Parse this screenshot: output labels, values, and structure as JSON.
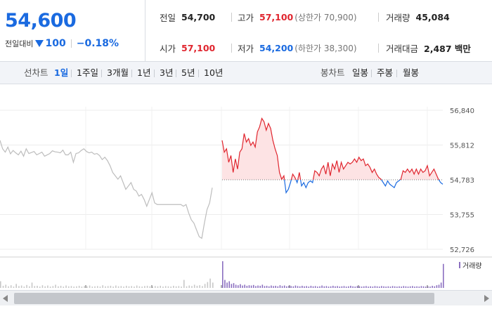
{
  "header": {
    "current_price": "54,600",
    "change_label": "전일대비",
    "change_direction_icon": "down-triangle-icon",
    "change_amount": "100",
    "change_rate": "−0.18%",
    "stats": {
      "prev_close": {
        "label": "전일",
        "value": "54,700"
      },
      "high": {
        "label": "고가",
        "value": "57,100",
        "sub": "(상한가 70,900)"
      },
      "volume": {
        "label": "거래량",
        "value": "45,084"
      },
      "open": {
        "label": "시가",
        "value": "57,100"
      },
      "low": {
        "label": "저가",
        "value": "54,200",
        "sub": "(하한가 38,300)"
      },
      "amount": {
        "label": "거래대금",
        "value": "2,487 백만"
      }
    }
  },
  "period_bar": {
    "line_chart_label": "선차트",
    "periods": [
      "1일",
      "1주일",
      "3개월",
      "1년",
      "3년",
      "5년",
      "10년"
    ],
    "active_period": "1일",
    "candle_chart_label": "봉차트",
    "candle_periods": [
      "일봉",
      "주봉",
      "월봉"
    ]
  },
  "colors": {
    "up": "#e0262f",
    "down": "#1a6ae0",
    "previous_day": "#bdbdbd",
    "up_fill": "#fde3e4",
    "volume_today": "#8b6fc0",
    "volume_previous": "#c8c8c8"
  },
  "chart_data": {
    "type": "line",
    "y_ticks": [
      "56,840",
      "55,812",
      "54,783",
      "53,755",
      "52,726"
    ],
    "ylim": [
      52726,
      56840
    ],
    "base_value": 54783,
    "volume_legend": "거래량",
    "previous_day_series": [
      55950,
      55700,
      55600,
      55750,
      55550,
      55650,
      55580,
      55520,
      55630,
      55480,
      55700,
      55560,
      55590,
      55620,
      55520,
      55560,
      55600,
      55480,
      55520,
      55560,
      55640,
      55610,
      55600,
      55580,
      55660,
      55520,
      55520,
      55600,
      55300,
      55560,
      55580,
      55650,
      55700,
      55620,
      55580,
      55600,
      55540,
      55560,
      55500,
      55380,
      55450,
      55350,
      55200,
      55000,
      54900,
      54800,
      54900,
      54700,
      54500,
      54600,
      54700,
      54500,
      54450,
      54300,
      54350,
      54200,
      54000,
      54200,
      54400,
      54100,
      54050,
      54050,
      54050,
      54050,
      54050,
      54050,
      54050,
      54050,
      54050,
      54050,
      54000,
      54050,
      53800,
      53600,
      53500,
      53300,
      53100,
      53050,
      53500,
      53900,
      54100,
      54550
    ],
    "today_series": [
      55950,
      55600,
      55700,
      55300,
      55500,
      55000,
      55400,
      55100,
      55600,
      55700,
      56150,
      55900,
      56000,
      55800,
      55900,
      55750,
      56200,
      56350,
      56600,
      56500,
      56250,
      56450,
      56300,
      55950,
      55700,
      55500,
      55000,
      54800,
      54900,
      54400,
      54500,
      54700,
      54950,
      54850,
      54700,
      55000,
      54600,
      54700,
      54550,
      54700,
      54750,
      54700,
      55050,
      55000,
      54900,
      55100,
      55200,
      54950,
      55300,
      54900,
      55250,
      55100,
      55350,
      55000,
      55300,
      55100,
      55200,
      55300,
      55250,
      55300,
      55400,
      55300,
      55450,
      55350,
      55400,
      55200,
      55250,
      55150,
      55000,
      55100,
      54950,
      54850,
      54800,
      54700,
      54600,
      54750,
      54650,
      54600,
      54550,
      54700,
      54750,
      54800,
      55050,
      55000,
      55100,
      55000,
      55100,
      54950,
      55100,
      54950,
      55100,
      55000,
      55050,
      55200,
      54900,
      55000,
      55100,
      54950,
      54800,
      54700,
      54650
    ],
    "previous_day_volume": [
      0.25,
      0.08,
      0.12,
      0.06,
      0.1,
      0.05,
      0.15,
      0.07,
      0.09,
      0.05,
      0.11,
      0.06,
      0.2,
      0.07,
      0.08,
      0.05,
      0.1,
      0.06,
      0.09,
      0.05,
      0.07,
      0.12,
      0.06,
      0.08,
      0.05,
      0.09,
      0.06,
      0.07,
      0.05,
      0.06,
      0.08,
      0.05,
      0.07,
      0.06,
      0.09,
      0.05,
      0.06,
      0.07,
      0.05,
      0.1,
      0.06,
      0.07,
      0.08,
      0.05,
      0.09,
      0.06,
      0.07,
      0.05,
      0.08,
      0.06,
      0.07,
      0.05,
      0.09,
      0.06,
      0.05,
      0.07,
      0.08,
      0.06,
      0.05,
      0.07,
      0.06,
      0.08,
      0.05,
      0.07,
      0.06,
      0.05,
      0.08,
      0.06,
      0.07,
      0.05,
      0.3,
      0.06,
      0.09,
      0.07,
      0.12,
      0.08,
      0.1,
      0.07,
      0.15,
      0.22,
      0.35,
      0.2
    ],
    "today_volume": [
      1.0,
      0.3,
      0.2,
      0.25,
      0.15,
      0.18,
      0.12,
      0.1,
      0.14,
      0.09,
      0.12,
      0.08,
      0.1,
      0.09,
      0.11,
      0.07,
      0.09,
      0.08,
      0.12,
      0.07,
      0.08,
      0.06,
      0.09,
      0.07,
      0.08,
      0.06,
      0.1,
      0.07,
      0.09,
      0.06,
      0.08,
      0.07,
      0.06,
      0.09,
      0.07,
      0.06,
      0.08,
      0.06,
      0.07,
      0.05,
      0.08,
      0.06,
      0.07,
      0.05,
      0.06,
      0.09,
      0.06,
      0.07,
      0.05,
      0.06,
      0.08,
      0.06,
      0.07,
      0.05,
      0.06,
      0.07,
      0.05,
      0.06,
      0.08,
      0.06,
      0.05,
      0.07,
      0.06,
      0.05,
      0.06,
      0.07,
      0.05,
      0.06,
      0.05,
      0.07,
      0.06,
      0.05,
      0.07,
      0.06,
      0.05,
      0.06,
      0.05,
      0.07,
      0.06,
      0.05,
      0.06,
      0.05,
      0.07,
      0.06,
      0.05,
      0.06,
      0.07,
      0.05,
      0.06,
      0.05,
      0.07,
      0.06,
      0.05,
      0.06,
      0.05,
      0.08,
      0.06,
      0.1,
      0.12,
      0.2,
      0.9
    ]
  }
}
